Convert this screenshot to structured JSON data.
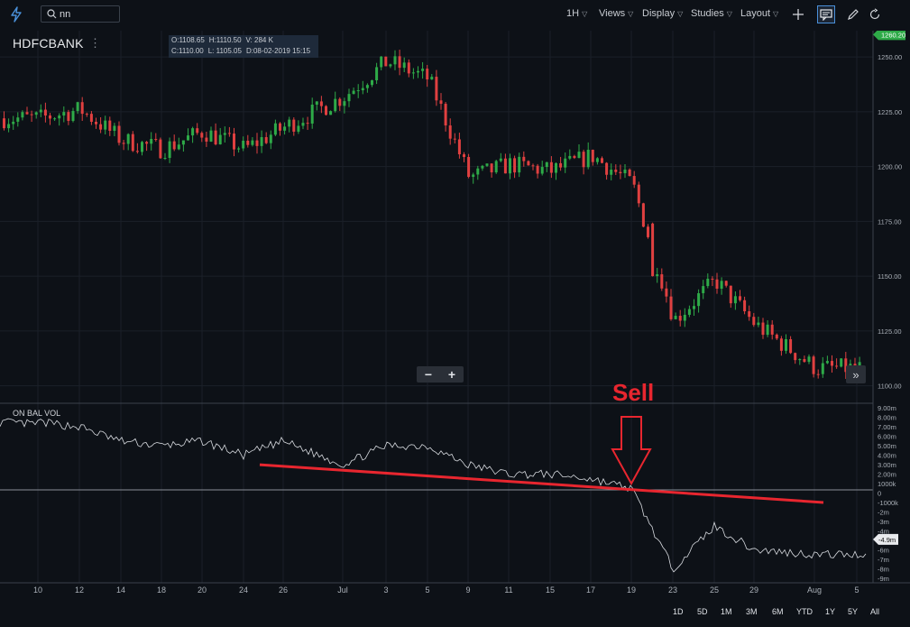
{
  "toolbar": {
    "search_value": "nn",
    "menus": [
      {
        "label": "1H"
      },
      {
        "label": "Views"
      },
      {
        "label": "Display"
      },
      {
        "label": "Studies"
      },
      {
        "label": "Layout"
      }
    ]
  },
  "symbol": {
    "name": "HDFCBANK",
    "menu_glyph": "⋮"
  },
  "ohlc": {
    "open": "O:1108.65",
    "high": "H:1110.50",
    "volume": "V: 284 K",
    "close": "C:1110.00",
    "low": "L: 1105.05",
    "date": "D:08-02-2019 15:15"
  },
  "price_axis": {
    "current_price": "1260.20",
    "current_price_color": "#2eaa48",
    "ticks": [
      "1250.00",
      "1225.00",
      "1200.00",
      "1175.00",
      "1150.00",
      "1125.00",
      "1100.00"
    ]
  },
  "obv_axis": {
    "label": "ON BAL VOL",
    "ticks": [
      "9.00m",
      "8.00m",
      "7.00m",
      "6.00m",
      "5.00m",
      "4.00m",
      "3.00m",
      "2.00m",
      "1000k",
      "0",
      "-1000k",
      "-2m",
      "-3m",
      "-4m",
      "-5m",
      "-6m",
      "-7m",
      "-8m",
      "-9m"
    ],
    "current_value": "-4.9m"
  },
  "time_axis": {
    "ticks": [
      "10",
      "12",
      "14",
      "18",
      "20",
      "24",
      "26",
      "Jul",
      "3",
      "5",
      "9",
      "11",
      "15",
      "17",
      "19",
      "23",
      "25",
      "29",
      "Aug",
      "5"
    ]
  },
  "zoom": {
    "minus": "−",
    "plus": "+"
  },
  "scroll_glyph": "»",
  "annotation": {
    "text": "Sell",
    "color": "#e8262f"
  },
  "ranges": [
    {
      "label": "1D"
    },
    {
      "label": "5D"
    },
    {
      "label": "1M"
    },
    {
      "label": "3M"
    },
    {
      "label": "6M"
    },
    {
      "label": "YTD"
    },
    {
      "label": "1Y"
    },
    {
      "label": "5Y"
    },
    {
      "label": "All"
    }
  ],
  "colors": {
    "up_candle": "#2eaa48",
    "down_candle": "#e04040",
    "background": "#0d1117",
    "accent": "#4a90d9"
  },
  "chart_data": [
    {
      "type": "candlestick",
      "title": "HDFCBANK",
      "interval": "1H",
      "ylim": [
        1092,
        1262
      ],
      "last_price": 1260.2,
      "x_ticks": [
        "10",
        "12",
        "14",
        "18",
        "20",
        "24",
        "26",
        "Jul",
        "3",
        "5",
        "9",
        "11",
        "15",
        "17",
        "19",
        "23",
        "25",
        "29",
        "Aug",
        "5"
      ],
      "close_path": [
        {
          "x": "10",
          "y": 1222
        },
        {
          "x": "12",
          "y": 1226
        },
        {
          "x": "14",
          "y": 1212
        },
        {
          "x": "18",
          "y": 1208
        },
        {
          "x": "20",
          "y": 1216
        },
        {
          "x": "24",
          "y": 1208
        },
        {
          "x": "26",
          "y": 1218
        },
        {
          "x": "Jul",
          "y": 1232
        },
        {
          "x": "3",
          "y": 1248
        },
        {
          "x": "5",
          "y": 1240
        },
        {
          "x": "9",
          "y": 1195
        },
        {
          "x": "11",
          "y": 1201
        },
        {
          "x": "15",
          "y": 1198
        },
        {
          "x": "17",
          "y": 1205
        },
        {
          "x": "19",
          "y": 1192
        },
        {
          "x": "23",
          "y": 1130
        },
        {
          "x": "25",
          "y": 1148
        },
        {
          "x": "29",
          "y": 1128
        },
        {
          "x": "Aug",
          "y": 1108
        },
        {
          "x": "5",
          "y": 1095
        }
      ]
    },
    {
      "type": "line",
      "series": [
        {
          "name": "ON BAL VOL",
          "points": [
            {
              "x": "10",
              "y": 7.5
            },
            {
              "x": "12",
              "y": 7.0
            },
            {
              "x": "14",
              "y": 5.5
            },
            {
              "x": "18",
              "y": 5.0
            },
            {
              "x": "20",
              "y": 5.5
            },
            {
              "x": "24",
              "y": 4.0
            },
            {
              "x": "26",
              "y": 5.5
            },
            {
              "x": "Jul",
              "y": 3.0
            },
            {
              "x": "3",
              "y": 5.0
            },
            {
              "x": "5",
              "y": 5.0
            },
            {
              "x": "9",
              "y": 3.0
            },
            {
              "x": "11",
              "y": 2.0
            },
            {
              "x": "15",
              "y": 2.0
            },
            {
              "x": "17",
              "y": 1.5
            },
            {
              "x": "19",
              "y": 0.5
            },
            {
              "x": "23",
              "y": -8.0
            },
            {
              "x": "25",
              "y": -3.5
            },
            {
              "x": "29",
              "y": -6.0
            },
            {
              "x": "Aug",
              "y": -6.5
            },
            {
              "x": "5",
              "y": -4.9
            }
          ]
        }
      ],
      "ylim": [
        -9.5,
        9.5
      ],
      "annotations": [
        {
          "type": "trendline",
          "from": {
            "x": "26",
            "y": 3.0
          },
          "to": {
            "x": "5",
            "y": -1.0
          }
        },
        {
          "type": "down-arrow",
          "x": "19",
          "label": "Sell"
        }
      ]
    }
  ]
}
